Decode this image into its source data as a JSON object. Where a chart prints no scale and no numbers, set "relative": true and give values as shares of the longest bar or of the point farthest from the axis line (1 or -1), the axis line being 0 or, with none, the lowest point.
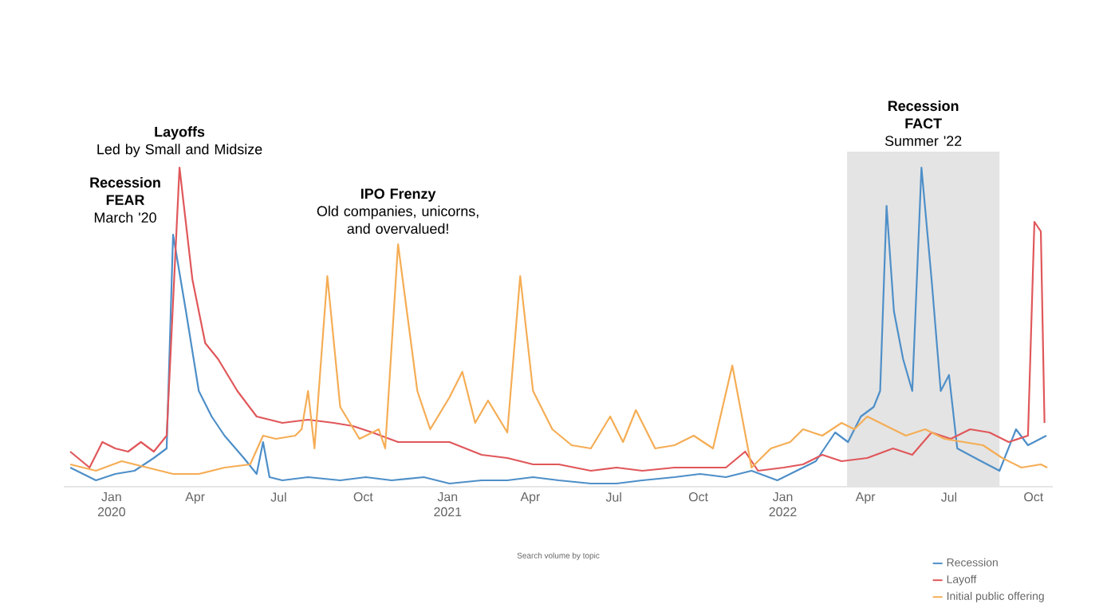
{
  "chart_data": {
    "type": "line",
    "relative": true,
    "xlim": [
      "2019-11-10",
      "2022-10-22"
    ],
    "xticks": [
      {
        "value": "2020-01-01",
        "label": "Jan 2020"
      },
      {
        "value": "2020-04-01",
        "label": "Apr"
      },
      {
        "value": "2020-07-01",
        "label": "Jul"
      },
      {
        "value": "2020-10-01",
        "label": "Oct"
      },
      {
        "value": "2021-01-01",
        "label": "Jan 2021"
      },
      {
        "value": "2021-04-01",
        "label": "Apr"
      },
      {
        "value": "2021-07-01",
        "label": "Jul"
      },
      {
        "value": "2021-10-01",
        "label": "Oct"
      },
      {
        "value": "2022-01-01",
        "label": "Jan 2022"
      },
      {
        "value": "2022-04-01",
        "label": "Apr"
      },
      {
        "value": "2022-07-01",
        "label": "Jul"
      },
      {
        "value": "2022-10-01",
        "label": "Oct"
      }
    ],
    "legend": "bottom right",
    "series": [
      {
        "name": "Recession",
        "color": "#4e8fc8",
        "x": [
          "2019-11-17",
          "2019-12-01",
          "2019-12-15",
          "2020-01-05",
          "2020-01-26",
          "2020-02-16",
          "2020-03-01",
          "2020-03-08",
          "2020-03-22",
          "2020-04-05",
          "2020-04-19",
          "2020-05-03",
          "2020-05-24",
          "2020-06-07",
          "2020-06-14",
          "2020-06-21",
          "2020-07-05",
          "2020-08-02",
          "2020-09-06",
          "2020-10-04",
          "2020-11-01",
          "2020-12-06",
          "2021-01-03",
          "2021-02-07",
          "2021-03-07",
          "2021-04-04",
          "2021-05-02",
          "2021-06-06",
          "2021-07-04",
          "2021-08-01",
          "2021-09-05",
          "2021-10-03",
          "2021-10-31",
          "2021-11-28",
          "2021-12-26",
          "2022-01-16",
          "2022-02-06",
          "2022-02-27",
          "2022-03-13",
          "2022-03-27",
          "2022-04-10",
          "2022-04-17",
          "2022-04-24",
          "2022-05-02",
          "2022-05-12",
          "2022-05-22",
          "2022-06-01",
          "2022-06-12",
          "2022-06-22",
          "2022-07-01",
          "2022-07-10",
          "2022-08-05",
          "2022-08-25",
          "2022-09-12",
          "2022-09-25",
          "2022-10-15"
        ],
        "values": [
          0.06,
          0.04,
          0.02,
          0.04,
          0.05,
          0.09,
          0.12,
          0.79,
          0.55,
          0.3,
          0.22,
          0.16,
          0.09,
          0.04,
          0.14,
          0.03,
          0.02,
          0.03,
          0.02,
          0.03,
          0.02,
          0.03,
          0.01,
          0.02,
          0.02,
          0.03,
          0.02,
          0.01,
          0.01,
          0.02,
          0.03,
          0.04,
          0.03,
          0.05,
          0.02,
          0.05,
          0.08,
          0.17,
          0.14,
          0.22,
          0.25,
          0.3,
          0.88,
          0.55,
          0.4,
          0.3,
          1.0,
          0.65,
          0.3,
          0.35,
          0.12,
          0.08,
          0.05,
          0.18,
          0.13,
          0.16
        ]
      },
      {
        "name": "Layoff",
        "color": "#e0575a",
        "x": [
          "2019-11-17",
          "2019-12-08",
          "2019-12-22",
          "2020-01-05",
          "2020-01-19",
          "2020-02-02",
          "2020-02-16",
          "2020-03-01",
          "2020-03-15",
          "2020-03-29",
          "2020-04-12",
          "2020-04-26",
          "2020-05-17",
          "2020-06-07",
          "2020-07-05",
          "2020-08-02",
          "2020-08-30",
          "2020-09-20",
          "2020-10-11",
          "2020-11-08",
          "2020-12-06",
          "2021-01-03",
          "2021-02-07",
          "2021-03-07",
          "2021-04-04",
          "2021-05-02",
          "2021-06-06",
          "2021-07-04",
          "2021-08-01",
          "2021-09-05",
          "2021-10-03",
          "2021-10-31",
          "2021-11-21",
          "2021-12-05",
          "2022-01-02",
          "2022-01-23",
          "2022-02-13",
          "2022-03-06",
          "2022-04-03",
          "2022-05-01",
          "2022-05-22",
          "2022-06-12",
          "2022-07-03",
          "2022-07-24",
          "2022-08-14",
          "2022-09-04",
          "2022-09-25",
          "2022-10-02",
          "2022-10-09",
          "2022-10-13"
        ],
        "values": [
          0.11,
          0.06,
          0.14,
          0.12,
          0.11,
          0.14,
          0.11,
          0.16,
          1.0,
          0.65,
          0.45,
          0.4,
          0.3,
          0.22,
          0.2,
          0.21,
          0.2,
          0.19,
          0.17,
          0.14,
          0.14,
          0.14,
          0.1,
          0.09,
          0.07,
          0.07,
          0.05,
          0.06,
          0.05,
          0.06,
          0.06,
          0.06,
          0.11,
          0.05,
          0.06,
          0.07,
          0.1,
          0.08,
          0.09,
          0.12,
          0.1,
          0.17,
          0.15,
          0.18,
          0.17,
          0.14,
          0.16,
          0.83,
          0.8,
          0.2
        ]
      },
      {
        "name": "Initial public offering",
        "color": "#f5ad55",
        "x": [
          "2019-11-17",
          "2019-12-15",
          "2020-01-12",
          "2020-02-09",
          "2020-03-08",
          "2020-04-05",
          "2020-05-03",
          "2020-05-31",
          "2020-06-14",
          "2020-06-28",
          "2020-07-19",
          "2020-07-26",
          "2020-08-02",
          "2020-08-09",
          "2020-08-23",
          "2020-09-06",
          "2020-09-27",
          "2020-10-18",
          "2020-10-25",
          "2020-11-08",
          "2020-11-29",
          "2020-12-13",
          "2021-01-03",
          "2021-01-17",
          "2021-01-31",
          "2021-02-14",
          "2021-03-07",
          "2021-03-21",
          "2021-04-04",
          "2021-04-25",
          "2021-05-16",
          "2021-06-06",
          "2021-06-27",
          "2021-07-11",
          "2021-07-25",
          "2021-08-15",
          "2021-09-05",
          "2021-09-26",
          "2021-10-17",
          "2021-11-07",
          "2021-11-28",
          "2021-12-19",
          "2022-01-09",
          "2022-01-23",
          "2022-02-13",
          "2022-03-06",
          "2022-03-20",
          "2022-04-03",
          "2022-04-24",
          "2022-05-15",
          "2022-06-05",
          "2022-06-26",
          "2022-07-17",
          "2022-08-07",
          "2022-08-28",
          "2022-09-18",
          "2022-10-09",
          "2022-10-16"
        ],
        "values": [
          0.07,
          0.05,
          0.08,
          0.06,
          0.04,
          0.04,
          0.06,
          0.07,
          0.16,
          0.15,
          0.16,
          0.18,
          0.3,
          0.12,
          0.66,
          0.25,
          0.15,
          0.18,
          0.12,
          0.76,
          0.3,
          0.18,
          0.28,
          0.36,
          0.2,
          0.27,
          0.17,
          0.66,
          0.3,
          0.18,
          0.13,
          0.12,
          0.22,
          0.14,
          0.24,
          0.12,
          0.13,
          0.16,
          0.12,
          0.38,
          0.06,
          0.12,
          0.14,
          0.18,
          0.16,
          0.2,
          0.18,
          0.22,
          0.19,
          0.16,
          0.18,
          0.15,
          0.14,
          0.13,
          0.09,
          0.06,
          0.07,
          0.06
        ]
      }
    ],
    "bands": [
      {
        "axis": "x",
        "from": "2022-03-12",
        "to": "2022-08-25",
        "label": "**Recession FACT** Summer '22",
        "color": "#e4e4e4"
      }
    ],
    "annotations": [
      {
        "text": "**Recession FEAR** March '20",
        "x": "2020-03-08",
        "y": 0.79
      },
      {
        "text": "**Layoffs** Led by Small and Midsize",
        "x": "2020-03-15",
        "y": 1.0
      },
      {
        "text": "**IPO Frenzy** Old companies, unicorns, and overvalued!",
        "x": "2020-11-08",
        "y": 0.76
      },
      "Search volume by topic"
    ]
  }
}
